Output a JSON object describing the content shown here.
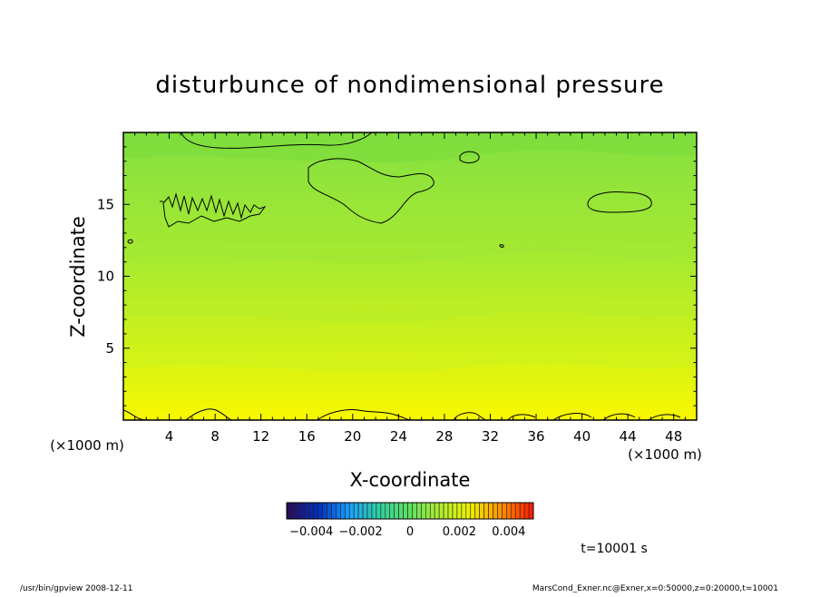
{
  "chart_data": {
    "type": "heatmap",
    "title": "disturbunce of nondimensional pressure",
    "xlabel": "X-coordinate",
    "ylabel": "Z-coordinate",
    "x_unit": "(×1000 m)",
    "y_unit": "(×1000 m)",
    "xlim": [
      0,
      50
    ],
    "ylim": [
      0,
      20
    ],
    "x_ticks": [
      "4",
      "8",
      "12",
      "16",
      "20",
      "24",
      "28",
      "32",
      "36",
      "40",
      "44",
      "48"
    ],
    "y_ticks": [
      "5",
      "10",
      "15"
    ],
    "colorbar": {
      "range": [
        -0.005,
        0.005
      ],
      "tick_labels": [
        "−0.004",
        "−0.002",
        "0",
        "0.002",
        "0.004"
      ],
      "colors": [
        "#2a0a5e",
        "#0030c0",
        "#1aa0ff",
        "#30d0a0",
        "#60e060",
        "#b0ee30",
        "#f0f000",
        "#ff9000",
        "#ff2000"
      ]
    },
    "field_colors": {
      "top": "#84e040",
      "bottom": "#f8f800"
    },
    "time_label": "t=10001 s",
    "footer_left": "/usr/bin/gpview   2008-12-11",
    "footer_right": "MarsCond_Exner.nc@Exner,x=0:50000,z=0:20000,t=10001"
  }
}
